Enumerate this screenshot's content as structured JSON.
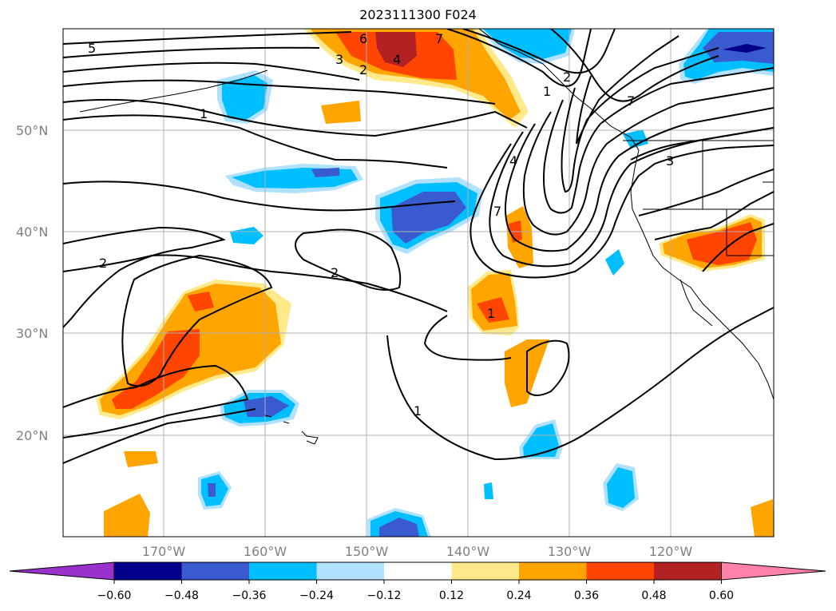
{
  "title": "2023111300 F024",
  "lat_ticks": [
    "50°N",
    "40°N",
    "30°N",
    "20°N"
  ],
  "lon_ticks": [
    "170°W",
    "160°W",
    "150°W",
    "140°W",
    "130°W",
    "120°W"
  ],
  "colorbar": {
    "ticks": [
      "−0.60",
      "−0.48",
      "−0.36",
      "−0.24",
      "−0.12",
      "0.12",
      "0.24",
      "0.36",
      "0.48",
      "0.60"
    ],
    "colors": [
      "#9932cc",
      "#00008b",
      "#3a5bcf",
      "#00bfff",
      "#b0e2ff",
      "#ffffff",
      "#ffe98a",
      "#ffa500",
      "#ff4500",
      "#b22222",
      "#ff82ab"
    ]
  },
  "contour_labels": [
    "5",
    "6",
    "7",
    "3",
    "4",
    "2",
    "1",
    "1",
    "7",
    "7",
    "4",
    "3",
    "2",
    "2",
    "2",
    "1",
    "1"
  ],
  "colors": {
    "contour": "#000000",
    "grid": "#b0b0b0",
    "coast": "#000000"
  }
}
